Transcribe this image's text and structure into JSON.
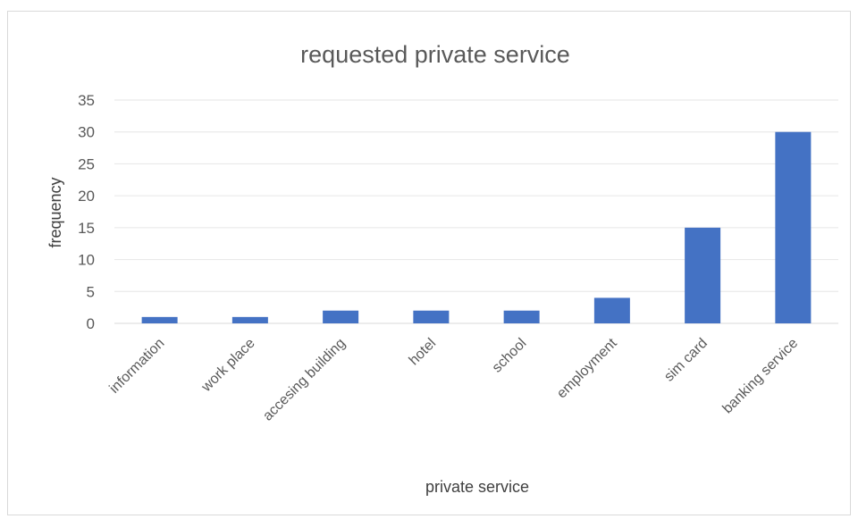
{
  "chart_data": {
    "type": "bar",
    "title": "requested private service",
    "xlabel": "private service",
    "ylabel": "frequency",
    "categories": [
      "information",
      "work place",
      "accesing building",
      "hotel",
      "school",
      "employment",
      "sim card",
      "banking service"
    ],
    "values": [
      1,
      1,
      2,
      2,
      2,
      4,
      15,
      30
    ],
    "ylim": [
      0,
      35
    ],
    "yticks": [
      "0",
      "5",
      "10",
      "15",
      "20",
      "25",
      "30",
      "35"
    ],
    "grid": true,
    "legend": "none",
    "colors": {
      "bar": "#4472c4",
      "grid": "#e6e6e6",
      "text": "#595959"
    }
  }
}
